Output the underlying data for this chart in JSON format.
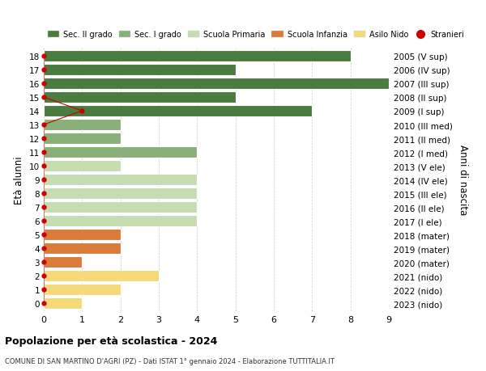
{
  "ages": [
    18,
    17,
    16,
    15,
    14,
    13,
    12,
    11,
    10,
    9,
    8,
    7,
    6,
    5,
    4,
    3,
    2,
    1,
    0
  ],
  "labels_right": [
    "2005 (V sup)",
    "2006 (IV sup)",
    "2007 (III sup)",
    "2008 (II sup)",
    "2009 (I sup)",
    "2010 (III med)",
    "2011 (II med)",
    "2012 (I med)",
    "2013 (V ele)",
    "2014 (IV ele)",
    "2015 (III ele)",
    "2016 (II ele)",
    "2017 (I ele)",
    "2018 (mater)",
    "2019 (mater)",
    "2020 (mater)",
    "2021 (nido)",
    "2022 (nido)",
    "2023 (nido)"
  ],
  "bar_values": [
    8,
    5,
    9,
    5,
    7,
    2,
    2,
    4,
    2,
    4,
    4,
    4,
    4,
    2,
    2,
    1,
    3,
    2,
    1
  ],
  "bar_colors": [
    "#4a7c3f",
    "#4a7c3f",
    "#4a7c3f",
    "#4a7c3f",
    "#4a7c3f",
    "#8ab07a",
    "#8ab07a",
    "#8ab07a",
    "#c5ddb0",
    "#c5ddb0",
    "#c5ddb0",
    "#c5ddb0",
    "#c5ddb0",
    "#d97b3a",
    "#d97b3a",
    "#d97b3a",
    "#f5d97a",
    "#f5d97a",
    "#f5d97a"
  ],
  "stranieri_x": [
    0,
    0,
    0,
    0,
    1,
    0,
    0,
    0,
    0,
    0,
    0,
    0,
    0,
    0,
    0,
    0,
    0,
    0,
    0
  ],
  "legend_labels": [
    "Sec. II grado",
    "Sec. I grado",
    "Scuola Primaria",
    "Scuola Infanzia",
    "Asilo Nido",
    "Stranieri"
  ],
  "legend_colors": [
    "#4a7c3f",
    "#8ab07a",
    "#c5ddb0",
    "#d97b3a",
    "#f5d97a",
    "#cc0000"
  ],
  "ylabel_left": "Età alunni",
  "ylabel_right": "Anni di nascita",
  "xlim": [
    0,
    9
  ],
  "title": "Popolazione per età scolastica - 2024",
  "subtitle": "COMUNE DI SAN MARTINO D'AGRI (PZ) - Dati ISTAT 1° gennaio 2024 - Elaborazione TUTTITALIA.IT",
  "bg_color": "#ffffff",
  "bar_height": 0.82
}
